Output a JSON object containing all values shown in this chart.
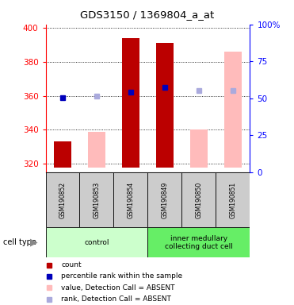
{
  "title": "GDS3150 / 1369804_a_at",
  "samples": [
    "GSM190852",
    "GSM190853",
    "GSM190854",
    "GSM190849",
    "GSM190850",
    "GSM190851"
  ],
  "ylim_left": [
    315,
    402
  ],
  "ylim_right": [
    0,
    100
  ],
  "left_ticks": [
    320,
    340,
    360,
    380,
    400
  ],
  "right_ticks": [
    0,
    25,
    50,
    75,
    100
  ],
  "right_tick_labels": [
    "0",
    "25",
    "50",
    "75",
    "100%"
  ],
  "count_values": [
    333,
    null,
    394,
    391,
    null,
    null
  ],
  "value_absent": [
    null,
    339,
    null,
    null,
    340,
    386
  ],
  "percentile_present": [
    359,
    null,
    362,
    365,
    null,
    null
  ],
  "rank_absent": [
    null,
    360,
    null,
    null,
    363,
    363
  ],
  "count_color": "#bb0000",
  "value_absent_color": "#ffbbbb",
  "percentile_color": "#0000bb",
  "rank_absent_color": "#aaaadd",
  "bar_width": 0.5,
  "baseline": 318,
  "control_color": "#ccffcc",
  "imcd_color": "#66ee66",
  "sample_box_color": "#cccccc"
}
